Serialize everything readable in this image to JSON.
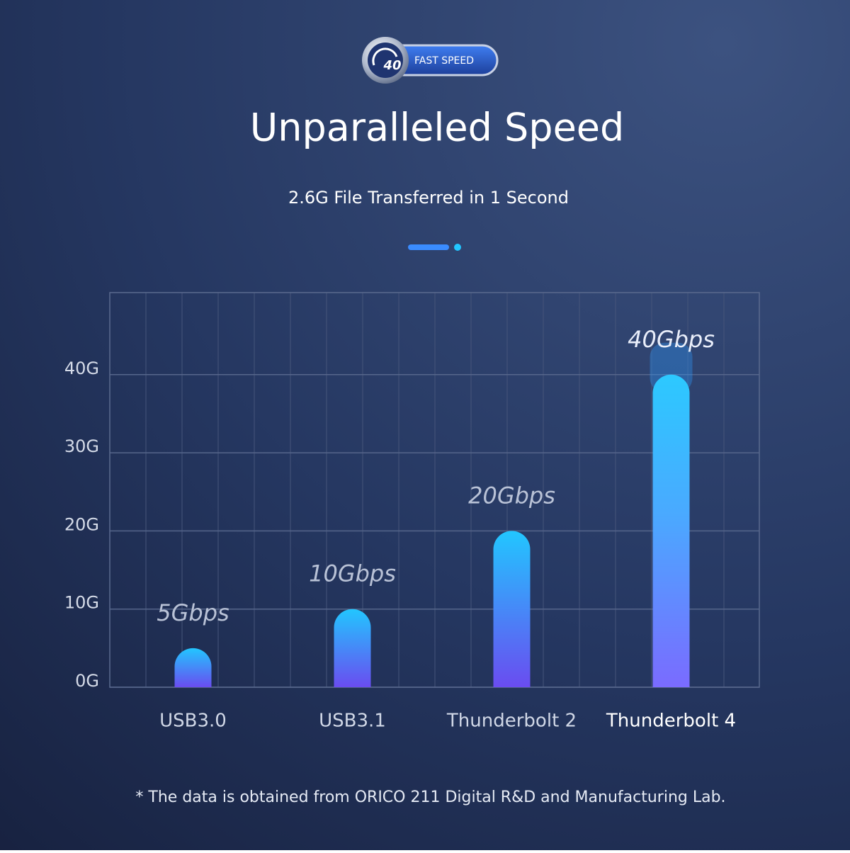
{
  "badge": {
    "number": "40",
    "text": "FAST SPEED"
  },
  "chart_data": {
    "type": "bar",
    "title": "Unparalleled Speed",
    "subtitle": "2.6G File Transferred in 1 Second",
    "categories": [
      "USB3.0",
      "USB3.1",
      "Thunderbolt 2",
      "Thunderbolt 4"
    ],
    "values": [
      5,
      10,
      20,
      40
    ],
    "value_labels": [
      "5Gbps",
      "10Gbps",
      "20Gbps",
      "40Gbps"
    ],
    "ylim": [
      0,
      50.5
    ],
    "yticks": [
      {
        "value": 0,
        "label": "0G"
      },
      {
        "value": 10,
        "label": "10G"
      },
      {
        "value": 20,
        "label": "20G"
      },
      {
        "value": 30,
        "label": "30G"
      },
      {
        "value": 40,
        "label": "40G"
      }
    ],
    "grid": true,
    "footnote": "* The data is obtained from ORICO 211 Digital R&D and Manufacturing Lab."
  }
}
